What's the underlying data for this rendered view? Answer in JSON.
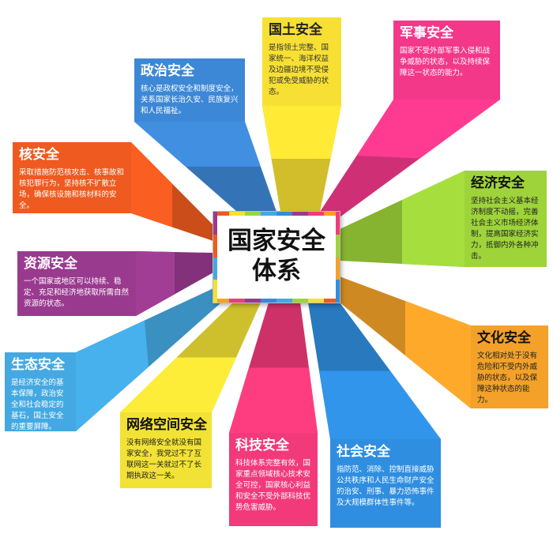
{
  "center": {
    "line1": "国家安全",
    "line2": "体系"
  },
  "colors": {
    "territory": "#f7e033",
    "military": "#f3388a",
    "political": "#3d88d6",
    "nuclear": "#ee5a1f",
    "economic": "#9ed43a",
    "resource": "#9a3a8f",
    "culture": "#f3a128",
    "ecology": "#44a9e2",
    "cyber": "#f2e235",
    "tech": "#f23a7a",
    "social": "#2f8ee0"
  },
  "cards": {
    "territory": {
      "title": "国土安全",
      "text": "是指领土完整、国家统一、海洋权益及边疆边境不受侵犯或免受威胁的状态。"
    },
    "military": {
      "title": "军事安全",
      "text": "国家不受外部军事入侵和战争威胁的状态，以及持续保障这一状态的能力。"
    },
    "political": {
      "title": "政治安全",
      "text": "核心是政权安全和制度安全，关系国家长治久安、民族复兴和人民福祉。"
    },
    "nuclear": {
      "title": "核安全",
      "text": "采取措施防范核攻击、核事故和核犯罪行为，坚持核不扩散立场，确保核设施和核材料的安全。"
    },
    "economic": {
      "title": "经济安全",
      "text": "坚持社会主义基本经济制度不动摇，完善社会主义市场经济体制，提高国家经济实力，抵御内外各种冲击。"
    },
    "resource": {
      "title": "资源安全",
      "text": "一个国家或地区可以持续、稳定、充足和经济地获取所需自然资源的状态。"
    },
    "culture": {
      "title": "文化安全",
      "text": "文化相对处于没有危险和不受内外威胁的状态，以及保障这种状态的能力。"
    },
    "ecology": {
      "title": "生态安全",
      "text": "是经济安全的基本保障，政治安全和社会稳定的基石，国土安全的重要屏障。"
    },
    "cyber": {
      "title": "网络空间安全",
      "text": "没有网络安全就没有国家安全，我党过不了互联网这一关就过不了长期执政这一关。"
    },
    "tech": {
      "title": "科技安全",
      "text": "科技体系完整有效，国家重点领域核心技术安全可控，国家核心利益和安全不受外部科技优势危害威胁。"
    },
    "social": {
      "title": "社会安全",
      "text": "指防范、消除、控制直接威胁公共秩序和人民生命财产安全的治安、刑事、暴力恐怖事件及大规模群体性事件等。"
    }
  }
}
